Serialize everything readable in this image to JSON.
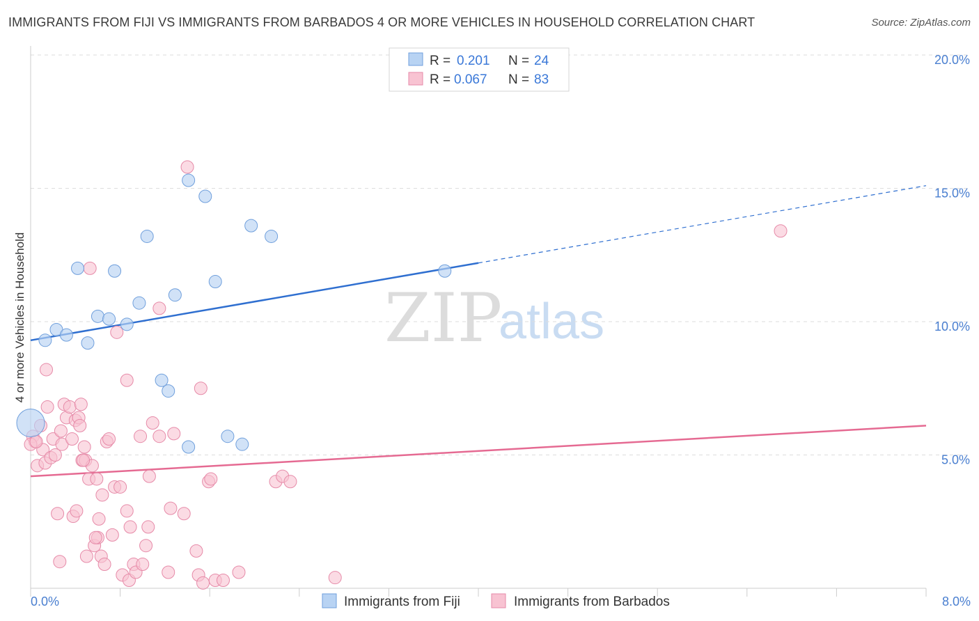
{
  "title": "IMMIGRANTS FROM FIJI VS IMMIGRANTS FROM BARBADOS 4 OR MORE VEHICLES IN HOUSEHOLD CORRELATION CHART",
  "source": "Source: ZipAtlas.com",
  "watermark": {
    "zip": "ZIP",
    "atlas": "atlas"
  },
  "colors": {
    "fiji_fill": "#b8d3f3",
    "fiji_stroke": "#6f9fdc",
    "fiji_line": "#2f6fd0",
    "barbados_fill": "#f8c3d2",
    "barbados_stroke": "#e68aa8",
    "barbados_line": "#e56a92",
    "grid": "#dddddd",
    "tick_text": "#4a7fd0"
  },
  "legend": {
    "rows": [
      {
        "r_label": "R =",
        "r_value": "0.201",
        "n_label": "N =",
        "n_value": "24"
      },
      {
        "r_label": "R =",
        "r_value": "0.067",
        "n_label": "N =",
        "n_value": "83"
      }
    ]
  },
  "chart_data": {
    "type": "scatter",
    "title": "IMMIGRANTS FROM FIJI VS IMMIGRANTS FROM BARBADOS 4 OR MORE VEHICLES IN HOUSEHOLD CORRELATION CHART",
    "xlabel": "",
    "ylabel": "4 or more Vehicles in Household",
    "xlim": [
      0,
      8
    ],
    "ylim": [
      0,
      20
    ],
    "x_tick_labels": {
      "min": "0.0%",
      "max": "8.0%"
    },
    "y_ticks": [
      {
        "value": 5,
        "label": "5.0%"
      },
      {
        "value": 10,
        "label": "10.0%"
      },
      {
        "value": 15,
        "label": "15.0%"
      },
      {
        "value": 20,
        "label": "20.0%"
      }
    ],
    "series": [
      {
        "name": "Immigrants from Fiji",
        "r": 0.201,
        "n": 24,
        "trend": {
          "x0": 0,
          "y0": 9.3,
          "x1": 4.0,
          "y1": 12.2,
          "dash_to_x": 8.0,
          "dash_to_y": 15.1
        },
        "points": [
          [
            0.0,
            6.2
          ],
          [
            0.13,
            9.3
          ],
          [
            0.23,
            9.7
          ],
          [
            0.32,
            9.5
          ],
          [
            0.42,
            12.0
          ],
          [
            0.51,
            9.2
          ],
          [
            0.6,
            10.2
          ],
          [
            0.7,
            10.1
          ],
          [
            0.75,
            11.9
          ],
          [
            0.86,
            9.9
          ],
          [
            0.97,
            10.7
          ],
          [
            1.04,
            13.2
          ],
          [
            1.17,
            7.8
          ],
          [
            1.23,
            7.4
          ],
          [
            1.29,
            11.0
          ],
          [
            1.41,
            5.3
          ],
          [
            1.41,
            15.3
          ],
          [
            1.56,
            14.7
          ],
          [
            1.65,
            11.5
          ],
          [
            1.76,
            5.7
          ],
          [
            1.89,
            5.4
          ],
          [
            1.97,
            13.6
          ],
          [
            2.15,
            13.2
          ],
          [
            3.7,
            11.9
          ]
        ]
      },
      {
        "name": "Immigrants from Barbados",
        "r": 0.067,
        "n": 83,
        "trend": {
          "x0": 0,
          "y0": 4.2,
          "x1": 8.0,
          "y1": 6.1
        },
        "points": [
          [
            0.02,
            5.7
          ],
          [
            0.04,
            5.5
          ],
          [
            0.06,
            4.6
          ],
          [
            0.09,
            6.1
          ],
          [
            0.11,
            5.2
          ],
          [
            0.13,
            4.7
          ],
          [
            0.14,
            8.2
          ],
          [
            0.15,
            6.8
          ],
          [
            0.18,
            4.9
          ],
          [
            0.2,
            5.6
          ],
          [
            0.22,
            5.0
          ],
          [
            0.24,
            2.8
          ],
          [
            0.26,
            1.0
          ],
          [
            0.27,
            5.9
          ],
          [
            0.28,
            5.4
          ],
          [
            0.3,
            6.9
          ],
          [
            0.32,
            6.4
          ],
          [
            0.35,
            6.8
          ],
          [
            0.37,
            5.6
          ],
          [
            0.38,
            2.7
          ],
          [
            0.4,
            6.3
          ],
          [
            0.41,
            2.9
          ],
          [
            0.43,
            6.4
          ],
          [
            0.44,
            6.1
          ],
          [
            0.45,
            6.9
          ],
          [
            0.46,
            4.8
          ],
          [
            0.48,
            5.3
          ],
          [
            0.49,
            4.8
          ],
          [
            0.5,
            1.2
          ],
          [
            0.52,
            4.1
          ],
          [
            0.53,
            12.0
          ],
          [
            0.55,
            4.6
          ],
          [
            0.57,
            1.6
          ],
          [
            0.59,
            4.1
          ],
          [
            0.6,
            1.9
          ],
          [
            0.61,
            2.6
          ],
          [
            0.63,
            1.2
          ],
          [
            0.64,
            3.5
          ],
          [
            0.66,
            0.9
          ],
          [
            0.68,
            5.5
          ],
          [
            0.7,
            5.6
          ],
          [
            0.73,
            2.0
          ],
          [
            0.75,
            3.8
          ],
          [
            0.77,
            9.6
          ],
          [
            0.8,
            3.8
          ],
          [
            0.82,
            0.5
          ],
          [
            0.86,
            7.8
          ],
          [
            0.86,
            2.9
          ],
          [
            0.88,
            0.3
          ],
          [
            0.89,
            2.3
          ],
          [
            0.92,
            0.9
          ],
          [
            0.94,
            0.6
          ],
          [
            0.98,
            5.7
          ],
          [
            1.0,
            0.9
          ],
          [
            1.03,
            1.6
          ],
          [
            1.05,
            2.3
          ],
          [
            1.06,
            4.2
          ],
          [
            1.09,
            6.2
          ],
          [
            1.15,
            5.7
          ],
          [
            1.15,
            10.5
          ],
          [
            1.23,
            0.6
          ],
          [
            1.25,
            3.0
          ],
          [
            1.28,
            5.8
          ],
          [
            1.37,
            2.8
          ],
          [
            1.4,
            15.8
          ],
          [
            1.48,
            1.4
          ],
          [
            1.5,
            0.5
          ],
          [
            1.52,
            7.5
          ],
          [
            1.54,
            0.2
          ],
          [
            1.59,
            4.0
          ],
          [
            1.61,
            4.1
          ],
          [
            1.65,
            0.3
          ],
          [
            1.72,
            0.3
          ],
          [
            1.86,
            0.6
          ],
          [
            2.19,
            4.0
          ],
          [
            2.25,
            4.2
          ],
          [
            2.32,
            4.0
          ],
          [
            2.72,
            0.4
          ],
          [
            6.7,
            13.4
          ],
          [
            0.0,
            5.4
          ],
          [
            0.05,
            5.5
          ],
          [
            0.47,
            4.8
          ],
          [
            0.58,
            1.9
          ]
        ]
      }
    ],
    "legend_position": "top-center"
  }
}
